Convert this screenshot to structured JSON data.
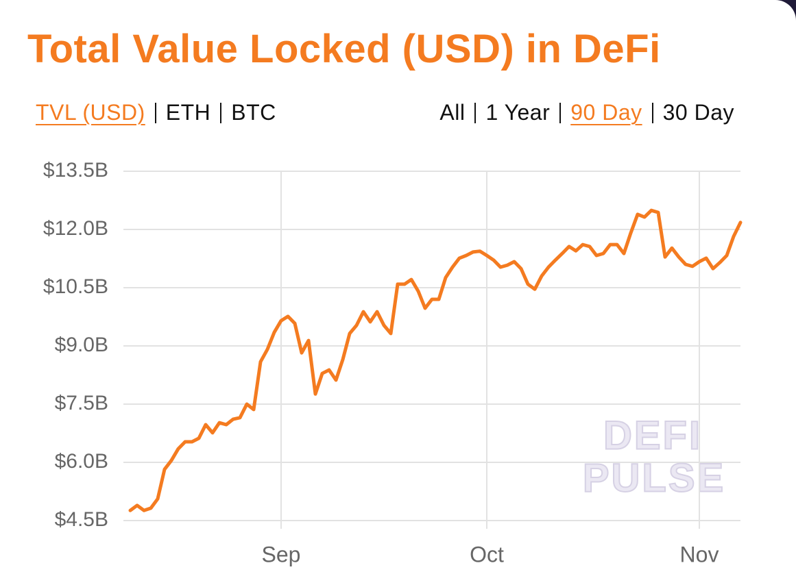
{
  "title": "Total Value Locked (USD) in DeFi",
  "metric_options": [
    "TVL (USD)",
    "ETH",
    "BTC"
  ],
  "selected_metric": "TVL (USD)",
  "range_options": [
    "All",
    "1 Year",
    "90 Day",
    "30 Day"
  ],
  "selected_range": "90 Day",
  "watermark": [
    "DEFI",
    "PULSE"
  ],
  "chart_data": {
    "type": "line",
    "categories": [
      null,
      null,
      null,
      null,
      null,
      null,
      null,
      null,
      null,
      null,
      null,
      null,
      null,
      null,
      null,
      null,
      null,
      null,
      null,
      null,
      null,
      null,
      "Sep",
      null,
      null,
      null,
      null,
      null,
      null,
      null,
      null,
      null,
      null,
      null,
      null,
      null,
      null,
      null,
      null,
      null,
      null,
      null,
      null,
      null,
      null,
      null,
      null,
      null,
      null,
      null,
      null,
      null,
      "Oct",
      null,
      null,
      null,
      null,
      null,
      null,
      null,
      null,
      null,
      null,
      null,
      null,
      null,
      null,
      null,
      null,
      null,
      null,
      null,
      null,
      null,
      null,
      null,
      null,
      null,
      null,
      null,
      null,
      null,
      null,
      "Nov",
      null,
      null,
      null,
      null,
      null,
      null
    ],
    "series": [
      {
        "name": "TVL (USD)",
        "color": "#f47b20",
        "values": [
          4.76,
          4.89,
          4.76,
          4.82,
          5.06,
          5.82,
          6.05,
          6.35,
          6.53,
          6.53,
          6.62,
          6.97,
          6.76,
          7.02,
          6.97,
          7.11,
          7.15,
          7.5,
          7.36,
          8.59,
          8.91,
          9.35,
          9.65,
          9.76,
          9.58,
          8.82,
          9.14,
          7.76,
          8.29,
          8.38,
          8.12,
          8.65,
          9.32,
          9.53,
          9.88,
          9.62,
          9.88,
          9.53,
          9.32,
          10.59,
          10.59,
          10.71,
          10.41,
          9.97,
          10.2,
          10.2,
          10.76,
          11.03,
          11.26,
          11.33,
          11.42,
          11.44,
          11.33,
          11.21,
          11.03,
          11.08,
          11.17,
          10.99,
          10.59,
          10.46,
          10.8,
          11.03,
          11.21,
          11.38,
          11.56,
          11.45,
          11.61,
          11.56,
          11.33,
          11.38,
          11.61,
          11.61,
          11.38,
          11.91,
          12.39,
          12.32,
          12.49,
          12.44,
          11.29,
          11.52,
          11.29,
          11.1,
          11.05,
          11.17,
          11.26,
          10.99,
          11.15,
          11.33,
          11.82,
          12.18
        ]
      }
    ],
    "ylim": [
      4.5,
      13.5
    ],
    "yticks": [
      {
        "value": 4.5,
        "label": "$4.5B"
      },
      {
        "value": 6,
        "label": "$6.0B"
      },
      {
        "value": 7.5,
        "label": "$7.5B"
      },
      {
        "value": 9,
        "label": "$9.0B"
      },
      {
        "value": 10.5,
        "label": "$10.5B"
      },
      {
        "value": 12,
        "label": "$12.0B"
      },
      {
        "value": 13.5,
        "label": "$13.5B"
      }
    ],
    "grid": true
  }
}
